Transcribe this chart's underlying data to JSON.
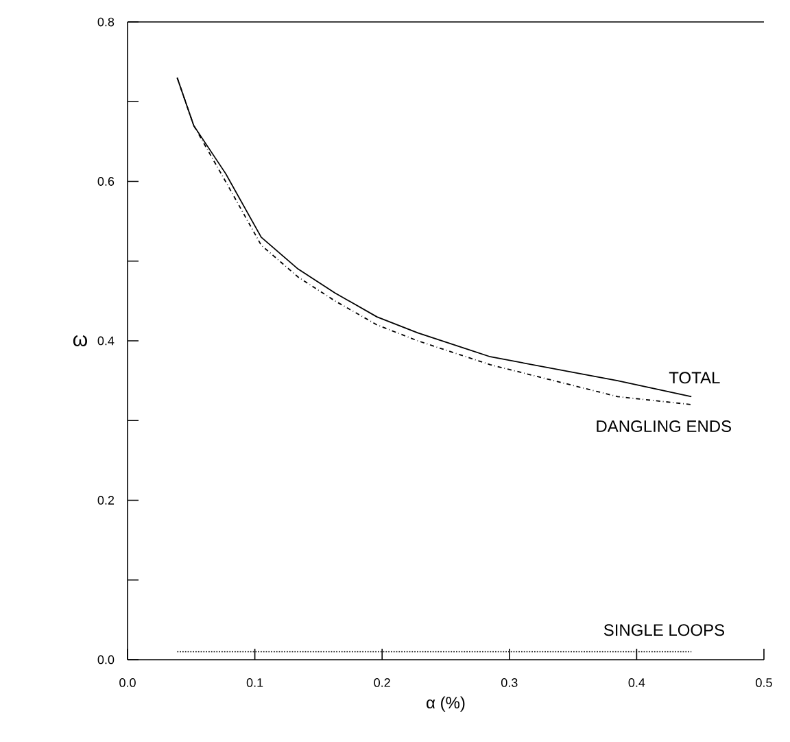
{
  "chart_data": {
    "type": "line",
    "xlabel": "α (%)",
    "ylabel": "ω",
    "xlim": [
      0,
      0.5
    ],
    "ylim": [
      0,
      0.8
    ],
    "xticks": [
      {
        "value": 0,
        "label": "0.0"
      },
      {
        "value": 0.1,
        "label": "0.1"
      },
      {
        "value": 0.2,
        "label": "0.2"
      },
      {
        "value": 0.3,
        "label": "0.3"
      },
      {
        "value": 0.4,
        "label": "0.4"
      },
      {
        "value": 0.5,
        "label": "0.5"
      }
    ],
    "yticks": [
      {
        "value": 0,
        "label": "0.0"
      },
      {
        "value": 0.1,
        "label": null
      },
      {
        "value": 0.2,
        "label": "0.2"
      },
      {
        "value": 0.3,
        "label": null
      },
      {
        "value": 0.4,
        "label": "0.4"
      },
      {
        "value": 0.5,
        "label": null
      },
      {
        "value": 0.6,
        "label": "0.6"
      },
      {
        "value": 0.7,
        "label": null
      },
      {
        "value": 0.8,
        "label": "0.8"
      }
    ],
    "series": [
      {
        "name": "TOTAL",
        "color": "#000000",
        "line_style": "solid",
        "x": [
          0.039,
          0.052,
          0.077,
          0.105,
          0.134,
          0.163,
          0.196,
          0.228,
          0.285,
          0.385,
          0.443
        ],
        "values": [
          0.73,
          0.67,
          0.61,
          0.53,
          0.49,
          0.46,
          0.43,
          0.41,
          0.38,
          0.35,
          0.33
        ]
      },
      {
        "name": "DANGLING ENDS",
        "color": "#000000",
        "line_style": "dashed",
        "x": [
          0.039,
          0.052,
          0.077,
          0.105,
          0.134,
          0.163,
          0.196,
          0.228,
          0.285,
          0.385,
          0.443
        ],
        "values": [
          0.73,
          0.67,
          0.6,
          0.52,
          0.48,
          0.45,
          0.42,
          0.4,
          0.37,
          0.33,
          0.32
        ]
      },
      {
        "name": "SINGLE LOOPS",
        "color": "#000000",
        "line_style": "dotted",
        "x": [
          0.039,
          0.443
        ],
        "values": [
          0.01,
          0.01
        ]
      }
    ],
    "grid": false,
    "legend": false
  }
}
